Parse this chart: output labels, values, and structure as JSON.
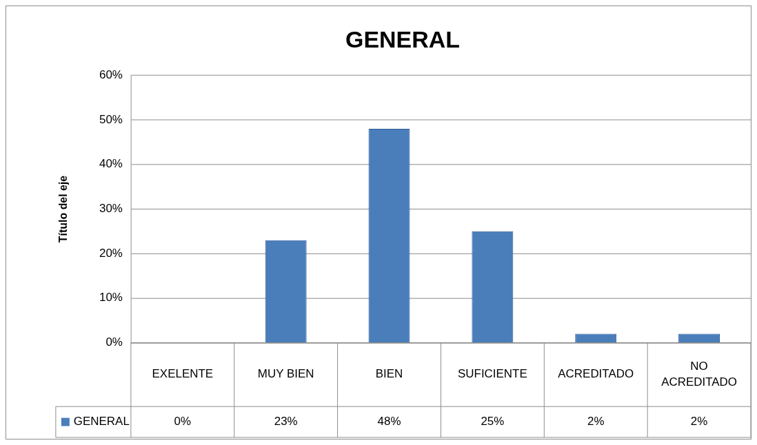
{
  "chart_data": {
    "type": "bar",
    "title": "GENERAL",
    "ylabel": "Título del eje",
    "categories": [
      "EXELENTE",
      "MUY BIEN",
      "BIEN",
      "SUFICIENTE",
      "ACREDITADO",
      "NO ACREDITADO"
    ],
    "series": [
      {
        "name": "GENERAL",
        "color": "#4a7ebb",
        "values": [
          0,
          23,
          48,
          25,
          2,
          2
        ],
        "value_labels": [
          "0%",
          "23%",
          "48%",
          "25%",
          "2%",
          "2%"
        ]
      }
    ],
    "ylim": [
      0,
      60
    ],
    "yticks": [
      {
        "value": 0,
        "label": "0%"
      },
      {
        "value": 10,
        "label": "10%"
      },
      {
        "value": 20,
        "label": "20%"
      },
      {
        "value": 30,
        "label": "30%"
      },
      {
        "value": 40,
        "label": "40%"
      },
      {
        "value": 50,
        "label": "50%"
      },
      {
        "value": 60,
        "label": "60%"
      }
    ],
    "grid": "y",
    "legend": "bottom left"
  }
}
